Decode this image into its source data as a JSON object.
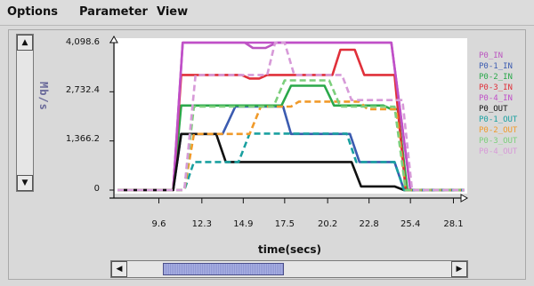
{
  "menu": {
    "items": [
      "Options",
      "Parameter",
      "View"
    ]
  },
  "colors": {
    "P0_IN": "#bb55c0",
    "P0-1_IN": "#3b5bb0",
    "P0-2_IN": "#2aa84a",
    "P0-3_IN": "#e0303a",
    "P0-4_IN": "#c050c8",
    "P0_OUT": "#111111",
    "P0-1_OUT": "#1aa0a0",
    "P0-2_OUT": "#f09a2a",
    "P0-3_OUT": "#7ccf7c",
    "P0-4_OUT": "#d79ad8"
  },
  "icons": {
    "scroll_up": "triangle-up-icon",
    "scroll_down": "triangle-down-icon",
    "scroll_left": "triangle-left-icon",
    "scroll_right": "triangle-right-icon"
  },
  "chart_data": {
    "type": "line",
    "title": "",
    "xlabel": "time(secs)",
    "ylabel": "Mb/s",
    "x_ticks": [
      "9.6",
      "12.3",
      "14.9",
      "17.5",
      "20.2",
      "22.8",
      "25.4",
      "28.1"
    ],
    "y_ticks": [
      "0",
      "1,366.2",
      "2,732.4",
      "4,098.6"
    ],
    "xlim": [
      7.0,
      28.8
    ],
    "ylim": [
      0,
      4098.6
    ],
    "grid": false,
    "legend_position": "right",
    "series": [
      {
        "name": "P0_IN",
        "style": "solid",
        "x": [
          7.0,
          10.5,
          11.1,
          15.0,
          15.5,
          16.3,
          17.0,
          24.2,
          25.4,
          28.8
        ],
        "y": [
          0,
          0,
          4098.6,
          4098.6,
          3950,
          3950,
          4098.6,
          4098.6,
          0,
          0
        ]
      },
      {
        "name": "P0-1_IN",
        "style": "solid",
        "x": [
          7.0,
          10.5,
          11.0,
          13.6,
          14.4,
          17.4,
          17.9,
          21.6,
          22.2,
          24.4,
          25.0,
          28.8
        ],
        "y": [
          0,
          0,
          1560,
          1560,
          2320,
          2320,
          1560,
          1560,
          780,
          780,
          0,
          0
        ]
      },
      {
        "name": "P0-2_IN",
        "style": "solid",
        "x": [
          7.0,
          10.5,
          11.0,
          17.3,
          17.9,
          20.0,
          20.6,
          23.7,
          24.2,
          24.6,
          25.2,
          28.8
        ],
        "y": [
          0,
          0,
          2350,
          2350,
          2900,
          2900,
          2350,
          2350,
          2250,
          2250,
          0,
          0
        ]
      },
      {
        "name": "P0-3_IN",
        "style": "solid",
        "x": [
          7.0,
          10.5,
          11.0,
          14.8,
          15.3,
          15.9,
          16.4,
          20.5,
          21.0,
          21.9,
          22.5,
          24.4,
          25.1,
          28.8
        ],
        "y": [
          0,
          0,
          3200,
          3200,
          3100,
          3100,
          3200,
          3200,
          3900,
          3900,
          3200,
          3200,
          0,
          0
        ]
      },
      {
        "name": "P0-4_IN",
        "style": "solid",
        "x": [
          7.0,
          10.5,
          11.1,
          24.2,
          25.4,
          28.8
        ],
        "y": [
          0,
          0,
          4098.6,
          4098.6,
          0,
          0
        ]
      },
      {
        "name": "P0_OUT",
        "style": "solid",
        "x": [
          7.0,
          10.5,
          11.0,
          13.2,
          13.8,
          21.7,
          22.3,
          24.4,
          25.0,
          28.8
        ],
        "y": [
          0,
          0,
          1560,
          1560,
          780,
          780,
          100,
          100,
          0,
          0
        ]
      },
      {
        "name": "P0-1_OUT",
        "style": "dashed",
        "x": [
          7.0,
          11.2,
          11.8,
          14.6,
          15.3,
          21.4,
          22.0,
          24.4,
          25.0,
          28.8
        ],
        "y": [
          0,
          0,
          780,
          780,
          1570,
          1570,
          780,
          780,
          0,
          0
        ]
      },
      {
        "name": "P0-2_OUT",
        "style": "dashed",
        "x": [
          7.0,
          11.2,
          11.8,
          15.3,
          16.0,
          17.9,
          18.4,
          22.2,
          22.7,
          24.5,
          25.1,
          28.8
        ],
        "y": [
          0,
          0,
          1560,
          1560,
          2320,
          2320,
          2460,
          2460,
          2250,
          2250,
          0,
          0
        ]
      },
      {
        "name": "P0-3_OUT",
        "style": "dashed",
        "x": [
          7.0,
          11.2,
          11.8,
          16.8,
          17.5,
          20.3,
          21.0,
          24.4,
          25.1,
          28.8
        ],
        "y": [
          0,
          0,
          2320,
          2320,
          3050,
          3050,
          2320,
          2320,
          0,
          0
        ]
      },
      {
        "name": "P0-4_OUT",
        "style": "dashed",
        "x": [
          7.0,
          11.2,
          11.9,
          16.4,
          16.9,
          17.5,
          18.1,
          21.1,
          21.7,
          24.9,
          25.5,
          28.8
        ],
        "y": [
          0,
          0,
          3200,
          3200,
          4098.6,
          4098.6,
          3200,
          3200,
          2500,
          2500,
          0,
          0
        ]
      }
    ]
  }
}
